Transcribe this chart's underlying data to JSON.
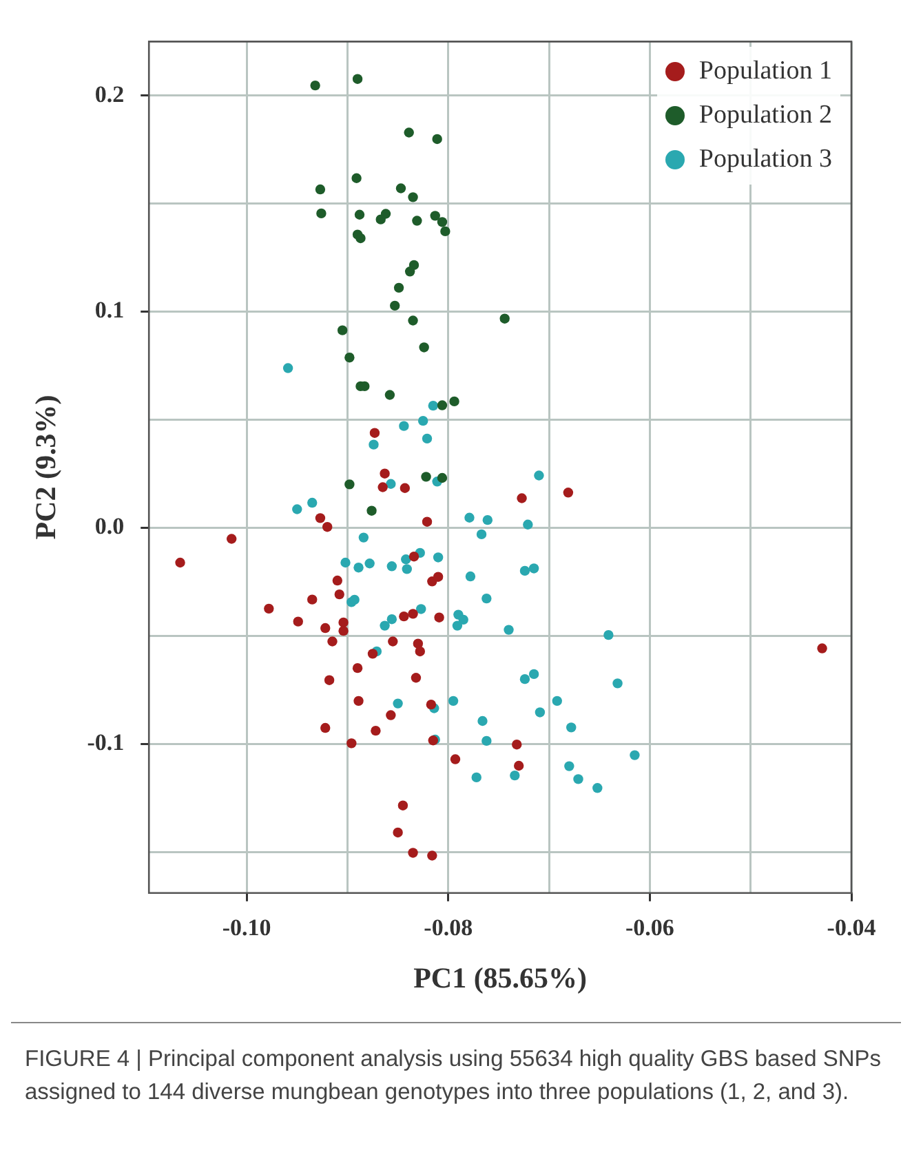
{
  "chart_data": {
    "type": "scatter",
    "xlabel": "PC1 (85.65%)",
    "ylabel": "PC2 (9.3%)",
    "annotations": [
      "FIGURE 4 | Principal component analysis using 55634 high quality GBS based SNPs assigned to 144 diverse mungbean genotypes into three populations (1, 2, and 3)."
    ],
    "xlim": [
      -0.1097,
      -0.04
    ],
    "ylim": [
      -0.169,
      0.225
    ],
    "xticks": [
      {
        "value": -0.1,
        "label": "-0.10"
      },
      {
        "value": -0.09,
        "label": null
      },
      {
        "value": -0.08,
        "label": "-0.08"
      },
      {
        "value": -0.07,
        "label": null
      },
      {
        "value": -0.06,
        "label": "-0.06"
      },
      {
        "value": -0.05,
        "label": null
      },
      {
        "value": -0.04,
        "label": "-0.04"
      }
    ],
    "yticks": [
      {
        "value": -0.15,
        "label": null
      },
      {
        "value": -0.1,
        "label": "-0.1"
      },
      {
        "value": -0.05,
        "label": null
      },
      {
        "value": 0,
        "label": "0.0"
      },
      {
        "value": 0.05,
        "label": null
      },
      {
        "value": 0.1,
        "label": "0.1"
      },
      {
        "value": 0.15,
        "label": null
      },
      {
        "value": 0.2,
        "label": "0.2"
      }
    ],
    "grid": true,
    "legend": "top right",
    "marker": "circle",
    "series": [
      {
        "name": "Population 1",
        "color": "#a51c1c",
        "x": [
          -0.0873,
          -0.0863,
          -0.0865,
          -0.0843,
          -0.0727,
          -0.0681,
          -0.0927,
          -0.092,
          -0.0821,
          -0.1015,
          -0.1066,
          -0.0834,
          -0.091,
          -0.0816,
          -0.081,
          -0.0908,
          -0.0935,
          -0.0978,
          -0.0949,
          -0.0922,
          -0.0904,
          -0.0904,
          -0.0915,
          -0.0844,
          -0.0835,
          -0.0809,
          -0.0855,
          -0.083,
          -0.0828,
          -0.0875,
          -0.089,
          -0.0918,
          -0.0832,
          -0.0889,
          -0.0857,
          -0.0817,
          -0.0922,
          -0.0872,
          -0.0896,
          -0.0815,
          -0.0732,
          -0.0793,
          -0.073,
          -0.0845,
          -0.085,
          -0.0835,
          -0.0816,
          -0.0429
        ],
        "values": [
          0.0439,
          0.0251,
          0.0188,
          0.0184,
          0.0137,
          0.0163,
          0.0045,
          0.0004,
          0.0028,
          -0.0051,
          -0.0161,
          -0.0133,
          -0.0244,
          -0.0248,
          -0.0227,
          -0.0308,
          -0.0332,
          -0.0374,
          -0.0434,
          -0.0464,
          -0.0438,
          -0.0477,
          -0.0526,
          -0.041,
          -0.0398,
          -0.0415,
          -0.0526,
          -0.0536,
          -0.0572,
          -0.0583,
          -0.0649,
          -0.0705,
          -0.0694,
          -0.0801,
          -0.0867,
          -0.0818,
          -0.0926,
          -0.0939,
          -0.0997,
          -0.0984,
          -0.1003,
          -0.1071,
          -0.1101,
          -0.1285,
          -0.141,
          -0.1504,
          -0.1517,
          -0.0558
        ]
      },
      {
        "name": "Population 2",
        "color": "#1e5c2a",
        "x": [
          -0.0932,
          -0.089,
          -0.0839,
          -0.0811,
          -0.0891,
          -0.0927,
          -0.0847,
          -0.0835,
          -0.0926,
          -0.0888,
          -0.0867,
          -0.0862,
          -0.0831,
          -0.0813,
          -0.0806,
          -0.0803,
          -0.089,
          -0.0887,
          -0.0834,
          -0.0838,
          -0.0849,
          -0.0853,
          -0.0835,
          -0.0744,
          -0.0905,
          -0.0824,
          -0.0898,
          -0.0887,
          -0.0883,
          -0.0858,
          -0.0806,
          -0.0794,
          -0.0822,
          -0.0806,
          -0.0898,
          -0.0876
        ],
        "values": [
          0.2047,
          0.2077,
          0.1829,
          0.1799,
          0.1618,
          0.1566,
          0.1571,
          0.153,
          0.1455,
          0.1449,
          0.1427,
          0.1453,
          0.1421,
          0.1444,
          0.1415,
          0.1372,
          0.1357,
          0.134,
          0.1216,
          0.1186,
          0.1111,
          0.1028,
          0.0959,
          0.0968,
          0.0914,
          0.0835,
          0.0788,
          0.0655,
          0.0655,
          0.0615,
          0.0567,
          0.0585,
          0.0236,
          0.0231,
          0.0201,
          0.0079
        ]
      },
      {
        "name": "Population 3",
        "color": "#2aa8b0",
        "x": [
          -0.0959,
          -0.0815,
          -0.0844,
          -0.0825,
          -0.0821,
          -0.0874,
          -0.0857,
          -0.0811,
          -0.071,
          -0.095,
          -0.0935,
          -0.0779,
          -0.0761,
          -0.0721,
          -0.0767,
          -0.0884,
          -0.0902,
          -0.0889,
          -0.0878,
          -0.0856,
          -0.0841,
          -0.0842,
          -0.0828,
          -0.081,
          -0.0778,
          -0.0724,
          -0.0715,
          -0.0762,
          -0.0896,
          -0.0893,
          -0.0827,
          -0.0856,
          -0.0863,
          -0.079,
          -0.0785,
          -0.0791,
          -0.074,
          -0.0641,
          -0.0871,
          -0.0724,
          -0.0715,
          -0.0632,
          -0.085,
          -0.0814,
          -0.0795,
          -0.0692,
          -0.0709,
          -0.0766,
          -0.0678,
          -0.0813,
          -0.0762,
          -0.0615,
          -0.068,
          -0.0671,
          -0.0652,
          -0.0772,
          -0.0734
        ],
        "values": [
          0.0739,
          0.0565,
          0.0471,
          0.0495,
          0.0413,
          0.0385,
          0.0203,
          0.0214,
          0.0242,
          0.0086,
          0.0116,
          0.0047,
          0.0036,
          0.0015,
          -0.003,
          -0.0045,
          -0.0161,
          -0.0184,
          -0.0165,
          -0.0178,
          -0.0191,
          -0.0146,
          -0.0116,
          -0.0137,
          -0.0225,
          -0.0199,
          -0.0188,
          -0.0327,
          -0.0344,
          -0.0333,
          -0.0376,
          -0.0423,
          -0.0453,
          -0.0402,
          -0.0425,
          -0.0453,
          -0.0472,
          -0.0496,
          -0.0572,
          -0.07,
          -0.0677,
          -0.072,
          -0.0813,
          -0.0835,
          -0.0801,
          -0.0801,
          -0.0854,
          -0.0894,
          -0.0924,
          -0.098,
          -0.0986,
          -0.1052,
          -0.1103,
          -0.1163,
          -0.1204,
          -0.1155,
          -0.1146
        ]
      }
    ]
  }
}
